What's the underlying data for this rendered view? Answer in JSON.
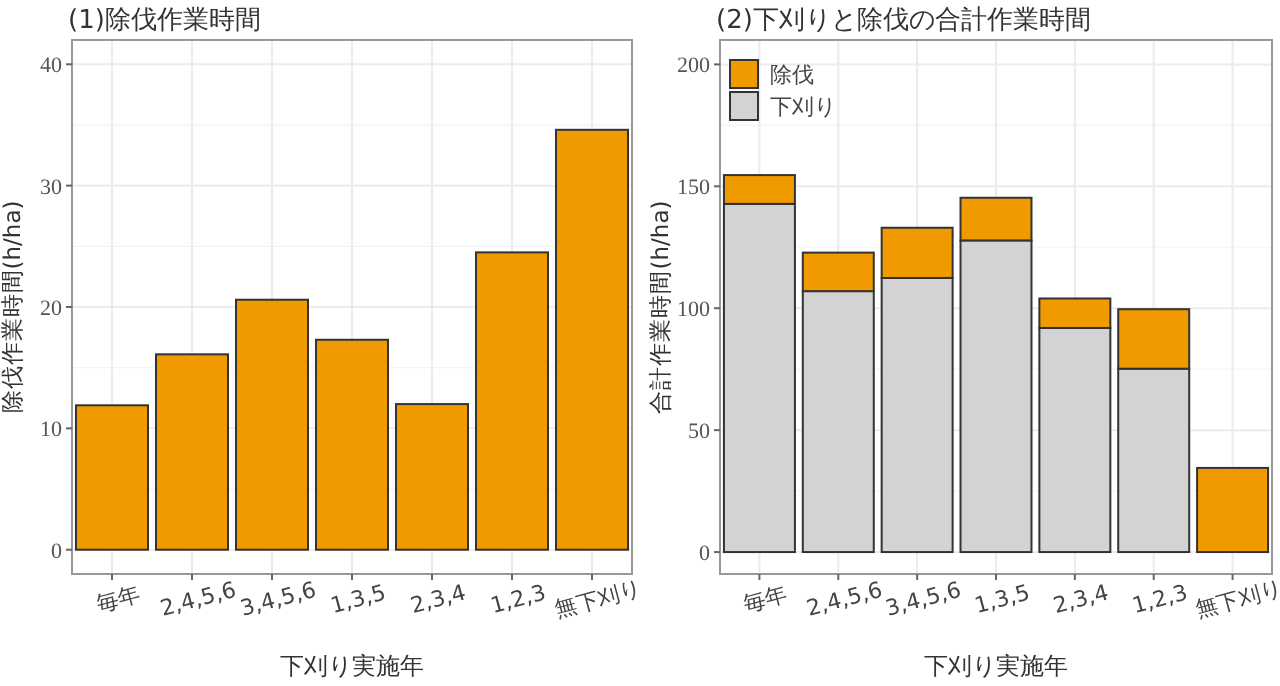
{
  "chart_data": [
    {
      "type": "bar",
      "title": "(1)除伐作業時間",
      "xlabel": "下刈り実施年",
      "ylabel": "除伐作業時間(h/ha)",
      "categories": [
        "毎年",
        "2,4,5,6",
        "3,4,5,6",
        "1,3,5",
        "2,3,4",
        "1,2,3",
        "無下刈り"
      ],
      "series": [
        {
          "color": "#f09a00",
          "values": [
            11.9,
            16.1,
            20.6,
            17.3,
            12.0,
            24.5,
            34.6
          ]
        }
      ],
      "ylim": [
        -2,
        42
      ],
      "yticks": [
        0,
        10,
        20,
        30,
        40
      ],
      "grid": true,
      "legend": false
    },
    {
      "type": "bar",
      "title": "(2)下刈りと除伐の合計作業時間",
      "xlabel": "下刈り実施年",
      "ylabel": "合計作業時間(h/ha)",
      "categories": [
        "毎年",
        "2,4,5,6",
        "3,4,5,6",
        "1,3,5",
        "2,3,4",
        "1,2,3",
        "無下刈り"
      ],
      "stacked": true,
      "series": [
        {
          "name": "下刈り",
          "color": "#d3d3d3",
          "values": [
            142.8,
            107.0,
            112.4,
            127.8,
            91.9,
            75.2,
            0
          ]
        },
        {
          "name": "除伐",
          "color": "#f09a00",
          "values": [
            11.8,
            15.8,
            20.6,
            17.5,
            12.1,
            24.4,
            34.5
          ]
        }
      ],
      "ylim": [
        -9,
        210
      ],
      "yticks": [
        0,
        50,
        100,
        150,
        200
      ],
      "grid": true,
      "legend": "top left"
    }
  ]
}
